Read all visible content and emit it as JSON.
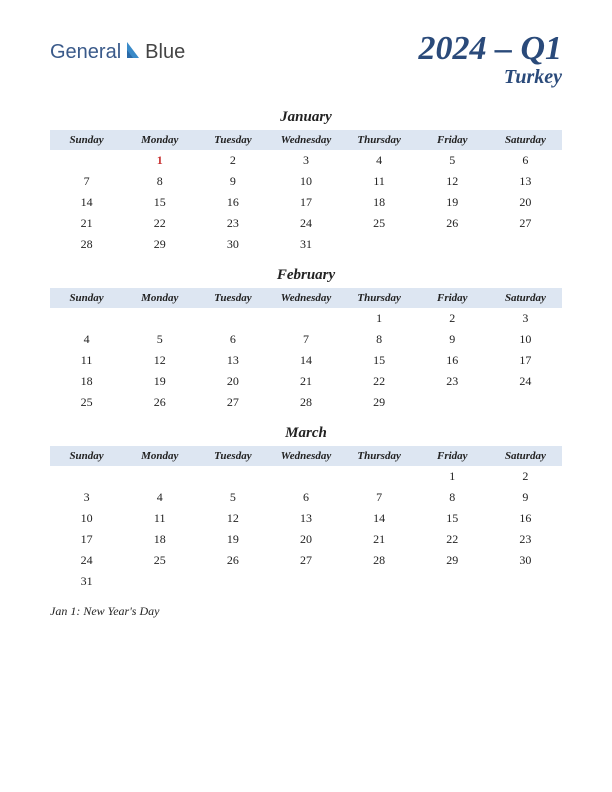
{
  "logo": {
    "text1": "General",
    "text2": "Blue",
    "icon_color": "#3a8ac8"
  },
  "title": {
    "main": "2024 – Q1",
    "sub": "Turkey",
    "color": "#2a4a7a",
    "main_fontsize": 34,
    "sub_fontsize": 20
  },
  "colors": {
    "header_bg": "#dde6f2",
    "text": "#222222",
    "holiday": "#c83232",
    "background": "#ffffff"
  },
  "day_headers": [
    "Sunday",
    "Monday",
    "Tuesday",
    "Wednesday",
    "Thursday",
    "Friday",
    "Saturday"
  ],
  "months": [
    {
      "name": "January",
      "weeks": [
        [
          "",
          "1",
          "2",
          "3",
          "4",
          "5",
          "6"
        ],
        [
          "7",
          "8",
          "9",
          "10",
          "11",
          "12",
          "13"
        ],
        [
          "14",
          "15",
          "16",
          "17",
          "18",
          "19",
          "20"
        ],
        [
          "21",
          "22",
          "23",
          "24",
          "25",
          "26",
          "27"
        ],
        [
          "28",
          "29",
          "30",
          "31",
          "",
          "",
          ""
        ]
      ],
      "holidays": [
        [
          0,
          1
        ]
      ]
    },
    {
      "name": "February",
      "weeks": [
        [
          "",
          "",
          "",
          "",
          "1",
          "2",
          "3"
        ],
        [
          "4",
          "5",
          "6",
          "7",
          "8",
          "9",
          "10"
        ],
        [
          "11",
          "12",
          "13",
          "14",
          "15",
          "16",
          "17"
        ],
        [
          "18",
          "19",
          "20",
          "21",
          "22",
          "23",
          "24"
        ],
        [
          "25",
          "26",
          "27",
          "28",
          "29",
          "",
          ""
        ]
      ],
      "holidays": []
    },
    {
      "name": "March",
      "weeks": [
        [
          "",
          "",
          "",
          "",
          "",
          "1",
          "2"
        ],
        [
          "3",
          "4",
          "5",
          "6",
          "7",
          "8",
          "9"
        ],
        [
          "10",
          "11",
          "12",
          "13",
          "14",
          "15",
          "16"
        ],
        [
          "17",
          "18",
          "19",
          "20",
          "21",
          "22",
          "23"
        ],
        [
          "24",
          "25",
          "26",
          "27",
          "28",
          "29",
          "30"
        ],
        [
          "31",
          "",
          "",
          "",
          "",
          "",
          ""
        ]
      ],
      "holidays": []
    }
  ],
  "holiday_notes": [
    "Jan 1: New Year's Day"
  ]
}
